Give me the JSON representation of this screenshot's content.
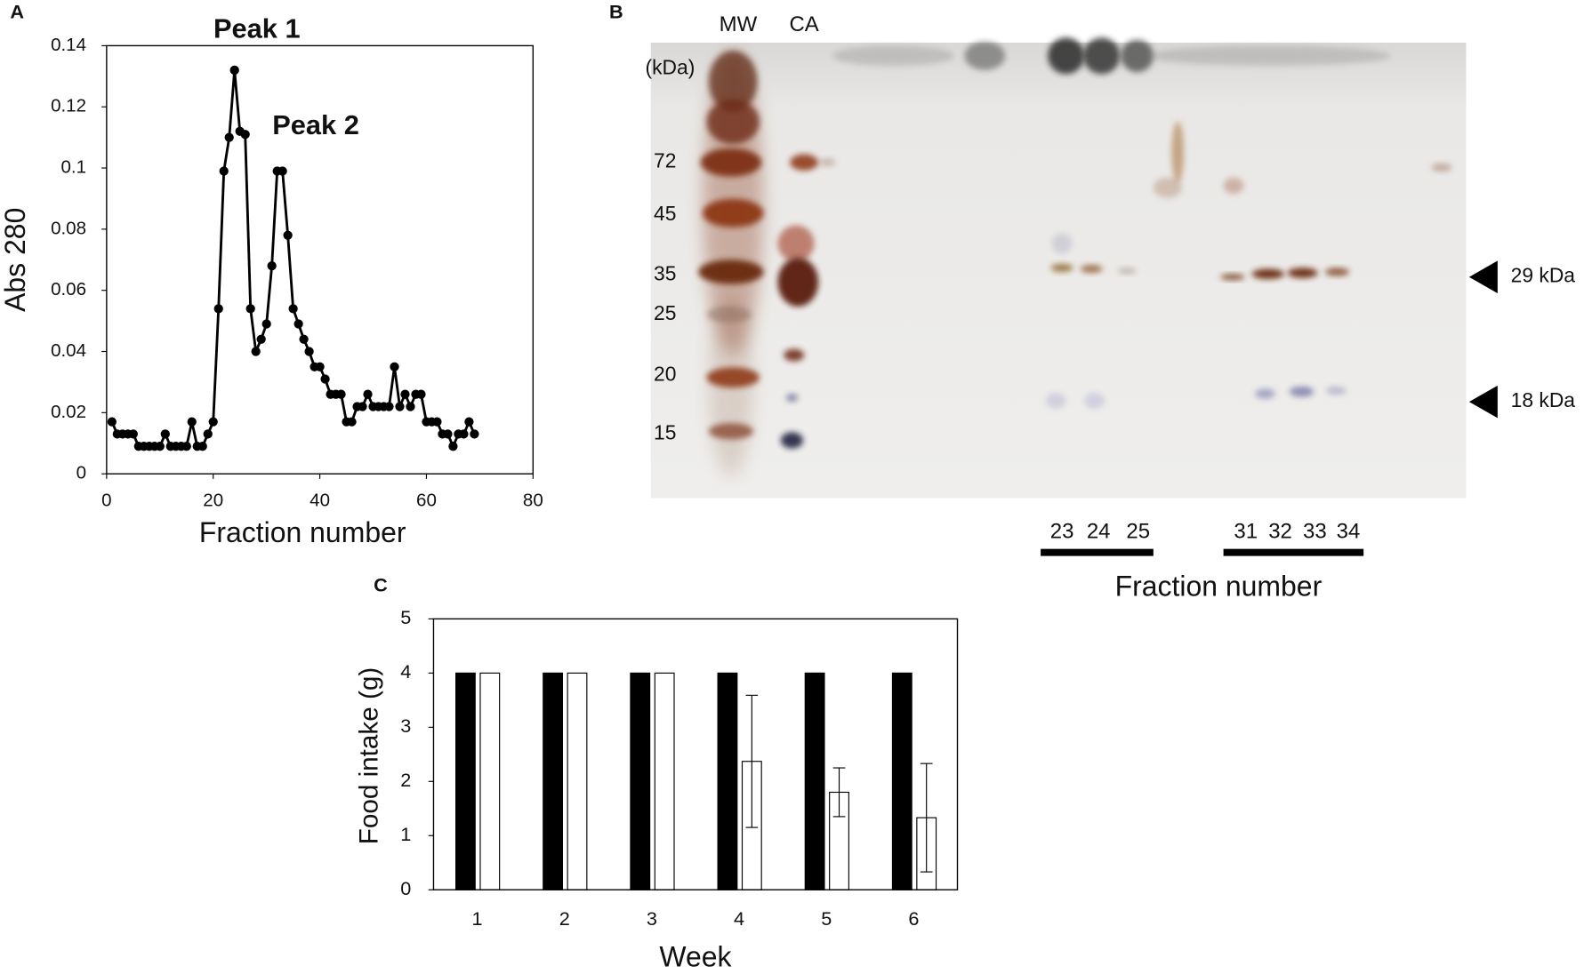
{
  "chart_data": [
    {
      "type": "line",
      "panel_label": "A",
      "xlabel": "Fraction number",
      "ylabel": "Abs 280",
      "color": "#000000",
      "annotations": [
        {
          "text": "Peak 1"
        },
        {
          "text": "Peak 2"
        }
      ],
      "x": [
        1,
        2,
        3,
        4,
        5,
        6,
        7,
        8,
        9,
        10,
        11,
        12,
        13,
        14,
        15,
        16,
        17,
        18,
        19,
        20,
        21,
        22,
        23,
        24,
        25,
        26,
        27,
        28,
        29,
        30,
        31,
        32,
        33,
        34,
        35,
        36,
        37,
        38,
        39,
        40,
        41,
        42,
        43,
        44,
        45,
        46,
        47,
        48,
        49,
        50,
        51,
        52,
        53,
        54,
        55,
        56,
        57,
        58,
        59,
        60,
        61,
        62,
        63,
        64,
        65,
        66,
        67,
        68,
        69
      ],
      "values": [
        0.017,
        0.013,
        0.013,
        0.013,
        0.013,
        0.009,
        0.009,
        0.009,
        0.009,
        0.009,
        0.013,
        0.009,
        0.009,
        0.009,
        0.009,
        0.017,
        0.009,
        0.009,
        0.013,
        0.017,
        0.054,
        0.099,
        0.11,
        0.132,
        0.112,
        0.111,
        0.054,
        0.04,
        0.044,
        0.049,
        0.068,
        0.099,
        0.099,
        0.078,
        0.054,
        0.049,
        0.044,
        0.04,
        0.035,
        0.035,
        0.031,
        0.026,
        0.026,
        0.026,
        0.017,
        0.017,
        0.022,
        0.022,
        0.026,
        0.022,
        0.022,
        0.022,
        0.022,
        0.035,
        0.022,
        0.026,
        0.022,
        0.026,
        0.026,
        0.017,
        0.017,
        0.017,
        0.013,
        0.013,
        0.009,
        0.013,
        0.013,
        0.017,
        0.013
      ],
      "xlim": [
        0,
        80
      ],
      "xticks": [
        0,
        20,
        40,
        60,
        80
      ],
      "ylim": [
        0,
        0.14
      ],
      "yticks": [
        0,
        0.02,
        0.04,
        0.06,
        0.08,
        0.1,
        0.12,
        0.14
      ]
    },
    {
      "type": "bar",
      "panel_label": "C",
      "xlabel": "Week",
      "ylabel": "Food intake (g)",
      "categories": [
        "1",
        "2",
        "3",
        "4",
        "5",
        "6"
      ],
      "series": [
        {
          "color": "#000000",
          "values": [
            4,
            4,
            4,
            4,
            4,
            4
          ]
        },
        {
          "color": "#ffffff",
          "values": [
            4,
            4,
            4,
            2.37,
            1.8,
            1.33
          ],
          "errors": [
            null,
            null,
            null,
            1.22,
            0.45,
            1.0
          ]
        }
      ],
      "ylim": [
        0,
        5
      ],
      "yticks": [
        0,
        1,
        2,
        3,
        4,
        5
      ]
    }
  ],
  "gel": {
    "panel_label": "B",
    "lanes": [
      "MW",
      "CA"
    ],
    "unit": "(kDa)",
    "markers": [
      72,
      45,
      35,
      25,
      20,
      15
    ],
    "bands": [
      "29 kDa",
      "18 kDa"
    ],
    "fractions": [
      23,
      24,
      25,
      31,
      32,
      33,
      34
    ],
    "xlabel": "Fraction number"
  }
}
